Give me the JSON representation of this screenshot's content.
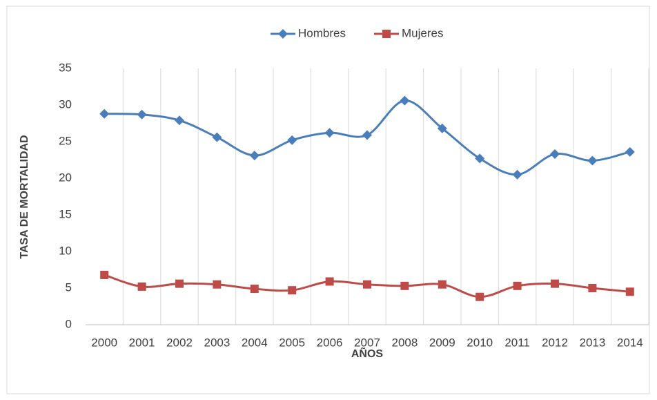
{
  "chart_data": {
    "type": "line",
    "x_label": "AÑOS",
    "y_label": "TASA DE MORTALIDAD",
    "categories": [
      "2000",
      "2001",
      "2002",
      "2003",
      "2004",
      "2005",
      "2006",
      "2007",
      "2008",
      "2009",
      "2010",
      "2011",
      "2012",
      "2013",
      "2014"
    ],
    "series": [
      {
        "name": "Hombres",
        "color": "#4a7ebb",
        "marker": "diamond",
        "values": [
          28.8,
          28.7,
          27.9,
          25.6,
          23.1,
          25.2,
          26.2,
          25.9,
          30.6,
          26.8,
          22.7,
          20.5,
          23.3,
          22.4,
          23.6
        ]
      },
      {
        "name": "Mujeres",
        "color": "#be4b48",
        "marker": "square",
        "values": [
          6.8,
          5.2,
          5.6,
          5.5,
          4.9,
          4.7,
          5.9,
          5.5,
          5.3,
          5.5,
          3.8,
          5.3,
          5.6,
          5.0,
          4.5
        ]
      }
    ],
    "ylim": [
      0,
      35
    ],
    "yticks": [
      0,
      5,
      10,
      15,
      20,
      25,
      30,
      35
    ],
    "grid": "x",
    "smooth": true,
    "legend": "top"
  }
}
